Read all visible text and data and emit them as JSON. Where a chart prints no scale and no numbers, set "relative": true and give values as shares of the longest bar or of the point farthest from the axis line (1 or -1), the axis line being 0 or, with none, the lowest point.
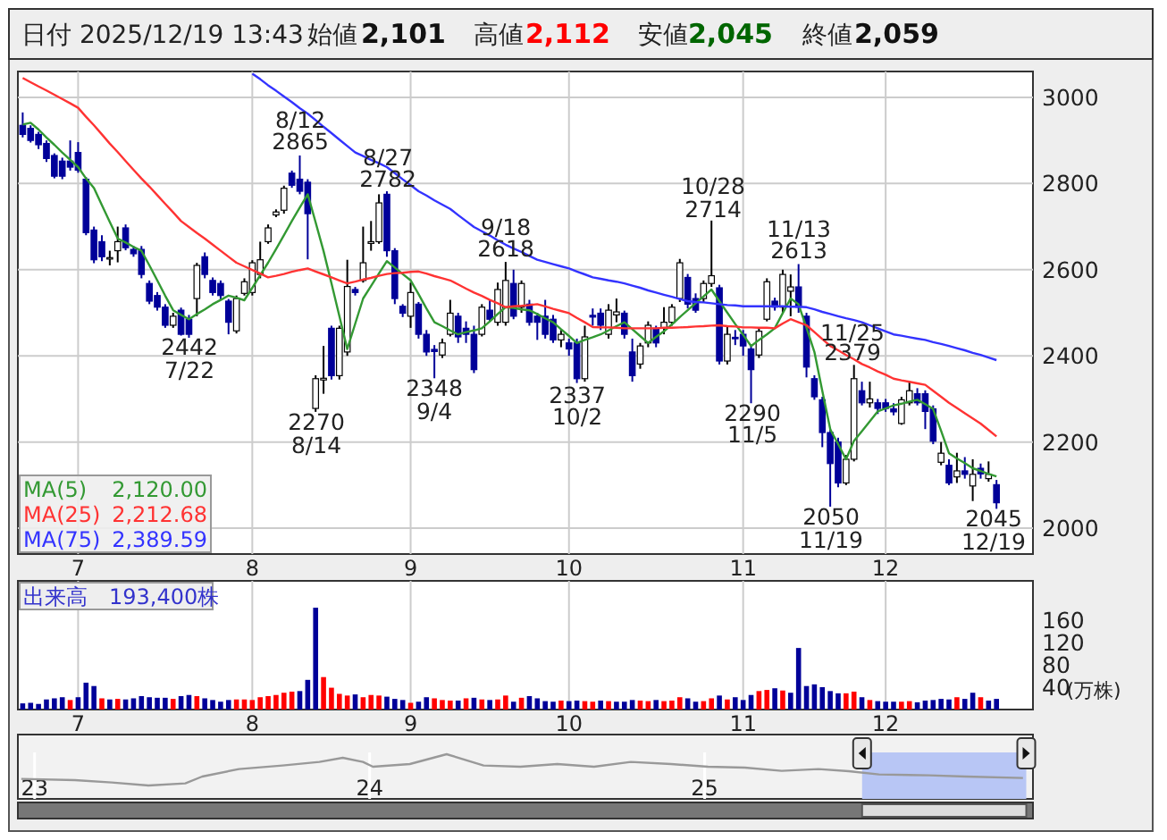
{
  "chart_data": [
    {
      "type": "candlestick",
      "categories": [
        null,
        null,
        null,
        null,
        null,
        null,
        null,
        "7",
        null,
        null,
        null,
        null,
        null,
        null,
        null,
        null,
        null,
        null,
        null,
        null,
        null,
        null,
        null,
        null,
        null,
        null,
        null,
        null,
        null,
        "8",
        null,
        null,
        null,
        null,
        null,
        null,
        null,
        null,
        null,
        null,
        null,
        null,
        null,
        null,
        null,
        null,
        null,
        null,
        null,
        "9",
        null,
        null,
        null,
        null,
        null,
        null,
        null,
        null,
        null,
        null,
        null,
        null,
        null,
        null,
        null,
        null,
        null,
        null,
        null,
        "10",
        null,
        null,
        null,
        null,
        null,
        null,
        null,
        null,
        null,
        null,
        null,
        null,
        null,
        null,
        null,
        null,
        null,
        null,
        null,
        null,
        null,
        "11",
        null,
        null,
        null,
        null,
        null,
        null,
        null,
        null,
        null,
        null,
        null,
        null,
        null,
        null,
        null,
        null,
        null,
        "12",
        null,
        null,
        null,
        null,
        null,
        null,
        null,
        null,
        null,
        null,
        null,
        null,
        null,
        null
      ],
      "ohlc": [
        [
          2935,
          2965,
          2907,
          2914
        ],
        [
          2928,
          2935,
          2895,
          2900
        ],
        [
          2914,
          2920,
          2880,
          2890
        ],
        [
          2893,
          2900,
          2850,
          2858
        ],
        [
          2865,
          2870,
          2812,
          2817
        ],
        [
          2852,
          2860,
          2810,
          2817
        ],
        [
          2852,
          2900,
          2830,
          2838
        ],
        [
          2872,
          2896,
          2825,
          2831
        ],
        [
          2810,
          2815,
          2680,
          2686
        ],
        [
          2692,
          2700,
          2615,
          2623
        ],
        [
          2665,
          2680,
          2620,
          2630
        ],
        [
          2626,
          2644,
          2610,
          2628
        ],
        [
          2644,
          2700,
          2617,
          2665
        ],
        [
          2697,
          2705,
          2645,
          2651
        ],
        [
          2647,
          2655,
          2630,
          2637
        ],
        [
          2647,
          2655,
          2580,
          2589
        ],
        [
          2568,
          2575,
          2520,
          2527
        ],
        [
          2540,
          2548,
          2505,
          2513
        ],
        [
          2513,
          2520,
          2465,
          2471
        ],
        [
          2471,
          2500,
          2465,
          2492
        ],
        [
          2506,
          2512,
          2447,
          2450
        ],
        [
          2485,
          2495,
          2442,
          2450
        ],
        [
          2533,
          2616,
          2492,
          2610
        ],
        [
          2630,
          2640,
          2580,
          2589
        ],
        [
          2575,
          2582,
          2540,
          2547
        ],
        [
          2568,
          2575,
          2530,
          2540
        ],
        [
          2527,
          2532,
          2450,
          2478
        ],
        [
          2458,
          2540,
          2452,
          2533
        ],
        [
          2545,
          2580,
          2540,
          2572
        ],
        [
          2547,
          2622,
          2540,
          2616
        ],
        [
          2589,
          2665,
          2580,
          2623
        ],
        [
          2665,
          2705,
          2660,
          2697
        ],
        [
          2727,
          2740,
          2722,
          2734
        ],
        [
          2738,
          2795,
          2730,
          2789
        ],
        [
          2824,
          2830,
          2790,
          2796
        ],
        [
          2810,
          2865,
          2775,
          2782
        ],
        [
          2803,
          2810,
          2624,
          2730
        ],
        [
          2278,
          2355,
          2270,
          2347
        ],
        [
          2344,
          2423,
          2312,
          2348
        ],
        [
          2464,
          2470,
          2345,
          2354
        ],
        [
          2354,
          2470,
          2345,
          2464
        ],
        [
          2409,
          2623,
          2400,
          2561
        ],
        [
          2554,
          2560,
          2540,
          2547
        ],
        [
          2575,
          2700,
          2570,
          2616
        ],
        [
          2661,
          2713,
          2644,
          2665
        ],
        [
          2665,
          2775,
          2660,
          2755
        ],
        [
          2775,
          2782,
          2630,
          2644
        ],
        [
          2644,
          2650,
          2520,
          2533
        ],
        [
          2515,
          2520,
          2490,
          2499
        ],
        [
          2492,
          2570,
          2465,
          2547
        ],
        [
          2520,
          2525,
          2440,
          2450
        ],
        [
          2450,
          2460,
          2400,
          2409
        ],
        [
          2415,
          2425,
          2348,
          2410
        ],
        [
          2402,
          2440,
          2395,
          2430
        ],
        [
          2450,
          2530,
          2445,
          2499
        ],
        [
          2492,
          2500,
          2430,
          2444
        ],
        [
          2464,
          2480,
          2430,
          2450
        ],
        [
          2450,
          2470,
          2360,
          2368
        ],
        [
          2450,
          2520,
          2445,
          2513
        ],
        [
          2506,
          2530,
          2480,
          2485
        ],
        [
          2478,
          2570,
          2470,
          2554
        ],
        [
          2478,
          2618,
          2470,
          2575
        ],
        [
          2568,
          2600,
          2485,
          2492
        ],
        [
          2513,
          2575,
          2500,
          2568
        ],
        [
          2520,
          2530,
          2470,
          2478
        ],
        [
          2492,
          2500,
          2437,
          2478
        ],
        [
          2492,
          2530,
          2440,
          2450
        ],
        [
          2485,
          2495,
          2430,
          2437
        ],
        [
          2437,
          2460,
          2420,
          2450
        ],
        [
          2430,
          2440,
          2400,
          2416
        ],
        [
          2430,
          2440,
          2337,
          2347
        ],
        [
          2347,
          2470,
          2340,
          2444
        ],
        [
          2494,
          2510,
          2470,
          2490
        ],
        [
          2499,
          2510,
          2460,
          2471
        ],
        [
          2450,
          2520,
          2440,
          2506
        ],
        [
          2495,
          2533,
          2478,
          2502
        ],
        [
          2499,
          2505,
          2440,
          2450
        ],
        [
          2409,
          2440,
          2340,
          2354
        ],
        [
          2381,
          2430,
          2370,
          2423
        ],
        [
          2430,
          2480,
          2420,
          2471
        ],
        [
          2464,
          2470,
          2420,
          2430
        ],
        [
          2464,
          2513,
          2450,
          2478
        ],
        [
          2478,
          2520,
          2470,
          2513
        ],
        [
          2533,
          2625,
          2525,
          2616
        ],
        [
          2582,
          2590,
          2510,
          2520
        ],
        [
          2533,
          2545,
          2500,
          2506
        ],
        [
          2533,
          2575,
          2525,
          2568
        ],
        [
          2568,
          2714,
          2560,
          2586
        ],
        [
          2558,
          2565,
          2380,
          2388
        ],
        [
          2388,
          2470,
          2380,
          2450
        ],
        [
          2443,
          2460,
          2425,
          2440
        ],
        [
          2450,
          2460,
          2400,
          2423
        ],
        [
          2416,
          2425,
          2290,
          2368
        ],
        [
          2402,
          2465,
          2395,
          2457
        ],
        [
          2485,
          2580,
          2480,
          2572
        ],
        [
          2527,
          2535,
          2505,
          2513
        ],
        [
          2513,
          2600,
          2500,
          2589
        ],
        [
          2550,
          2589,
          2492,
          2560
        ],
        [
          2560,
          2613,
          2500,
          2513
        ],
        [
          2492,
          2500,
          2350,
          2374
        ],
        [
          2347,
          2355,
          2298,
          2305
        ],
        [
          2298,
          2305,
          2188,
          2222
        ],
        [
          2222,
          2230,
          2050,
          2150
        ],
        [
          2200,
          2210,
          2095,
          2105
        ],
        [
          2105,
          2170,
          2100,
          2160
        ],
        [
          2160,
          2379,
          2155,
          2347
        ],
        [
          2319,
          2340,
          2285,
          2291
        ],
        [
          2291,
          2340,
          2280,
          2300
        ],
        [
          2291,
          2300,
          2265,
          2278
        ],
        [
          2291,
          2300,
          2270,
          2278
        ],
        [
          2277,
          2290,
          2262,
          2270
        ],
        [
          2243,
          2305,
          2240,
          2298
        ],
        [
          2291,
          2340,
          2285,
          2319
        ],
        [
          2312,
          2325,
          2285,
          2291
        ],
        [
          2312,
          2320,
          2230,
          2271
        ],
        [
          2277,
          2285,
          2195,
          2202
        ],
        [
          2153,
          2200,
          2146,
          2174
        ],
        [
          2146,
          2160,
          2100,
          2105
        ],
        [
          2119,
          2175,
          2105,
          2133
        ],
        [
          2133,
          2165,
          2115,
          2125
        ],
        [
          2098,
          2160,
          2063,
          2125
        ],
        [
          2139,
          2150,
          2115,
          2126
        ],
        [
          2115,
          2155,
          2108,
          2125
        ],
        [
          2101,
          2112,
          2045,
          2059
        ]
      ],
      "colors": [
        "#000099",
        "#000099",
        "#000099",
        "#000099",
        "#000099",
        "#000099",
        "#000099",
        "#000099",
        "#000099",
        "#000099",
        "#000099",
        "#ffffff",
        "#ffffff",
        "#000099",
        "#000099",
        "#000099",
        "#000099",
        "#000099",
        "#000099",
        "#ffffff",
        "#000099",
        "#000099",
        "#ffffff",
        "#000099",
        "#000099",
        "#000099",
        "#000099",
        "#ffffff",
        "#ffffff",
        "#ffffff",
        "#ffffff",
        "#ffffff",
        "#ffffff",
        "#ffffff",
        "#000099",
        "#000099",
        "#000099",
        "#ffffff",
        "#ffffff",
        "#000099",
        "#ffffff",
        "#ffffff",
        "#000099",
        "#ffffff",
        "#ffffff",
        "#ffffff",
        "#000099",
        "#000099",
        "#000099",
        "#ffffff",
        "#000099",
        "#000099",
        "#000099",
        "#ffffff",
        "#ffffff",
        "#000099",
        "#000099",
        "#000099",
        "#ffffff",
        "#000099",
        "#ffffff",
        "#ffffff",
        "#000099",
        "#ffffff",
        "#000099",
        "#000099",
        "#000099",
        "#000099",
        "#ffffff",
        "#000099",
        "#000099",
        "#ffffff",
        "#000099",
        "#000099",
        "#ffffff",
        "#ffffff",
        "#000099",
        "#000099",
        "#ffffff",
        "#ffffff",
        "#000099",
        "#ffffff",
        "#ffffff",
        "#ffffff",
        "#000099",
        "#000099",
        "#ffffff",
        "#ffffff",
        "#000099",
        "#ffffff",
        "#000099",
        "#000099",
        "#000099",
        "#ffffff",
        "#ffffff",
        "#000099",
        "#ffffff",
        "#ffffff",
        "#000099",
        "#000099",
        "#000099",
        "#000099",
        "#000099",
        "#000099",
        "#ffffff",
        "#ffffff",
        "#000099",
        "#ffffff",
        "#000099",
        "#000099",
        "#000099",
        "#ffffff",
        "#ffffff",
        "#000099",
        "#000099",
        "#000099",
        "#ffffff",
        "#000099",
        "#ffffff",
        "#000099",
        "#ffffff",
        "#000099",
        "#ffffff",
        "#000099"
      ],
      "series": [
        {
          "name": "MA(5)",
          "type": "line",
          "color": "#339933",
          "values": [
            2937,
            2941,
            2925,
            2907,
            2890,
            2872,
            2855,
            2838,
            2812,
            2789,
            2750,
            2711,
            2672,
            2663,
            2653,
            2644,
            2610,
            2575,
            2540,
            2506,
            2495,
            2485,
            2497,
            2508,
            2520,
            2530,
            2540,
            2535,
            2529,
            2558,
            2587,
            2616,
            2648,
            2680,
            2713,
            2744,
            2775,
            2710,
            2644,
            2568,
            2492,
            2416,
            2475,
            2533,
            2562,
            2591,
            2620,
            2605,
            2590,
            2575,
            2543,
            2510,
            2478,
            2469,
            2459,
            2450,
            2455,
            2459,
            2464,
            2480,
            2497,
            2513,
            2511,
            2508,
            2506,
            2497,
            2487,
            2478,
            2462,
            2446,
            2430,
            2437,
            2443,
            2450,
            2459,
            2469,
            2478,
            2462,
            2446,
            2430,
            2444,
            2457,
            2473,
            2490,
            2506,
            2522,
            2538,
            2554,
            2527,
            2500,
            2474,
            2449,
            2423,
            2437,
            2450,
            2464,
            2499,
            2533,
            2520,
            2465,
            2409,
            2319,
            2229,
            2195,
            2160,
            2202,
            2225,
            2248,
            2271,
            2278,
            2285,
            2289,
            2294,
            2298,
            2288,
            2277,
            2226,
            2174,
            2162,
            2151,
            2139,
            2133,
            2126,
            2120
          ]
        },
        {
          "name": "MA(25)",
          "type": "line",
          "color": "#ff3333",
          "values": [
            3045,
            3035,
            3025,
            3016,
            3006,
            2996,
            2986,
            2976,
            2955,
            2935,
            2914,
            2893,
            2873,
            2852,
            2832,
            2812,
            2793,
            2773,
            2753,
            2733,
            2713,
            2699,
            2685,
            2672,
            2658,
            2644,
            2630,
            2616,
            2608,
            2599,
            2591,
            2582,
            2586,
            2590,
            2595,
            2599,
            2603,
            2596,
            2589,
            2582,
            2575,
            2568,
            2572,
            2577,
            2581,
            2586,
            2590,
            2592,
            2593,
            2595,
            2596,
            2591,
            2585,
            2580,
            2575,
            2566,
            2556,
            2547,
            2539,
            2530,
            2522,
            2513,
            2515,
            2516,
            2518,
            2520,
            2515,
            2509,
            2504,
            2499,
            2488,
            2478,
            2467,
            2466,
            2466,
            2465,
            2464,
            2464,
            2464,
            2464,
            2464,
            2465,
            2465,
            2466,
            2467,
            2468,
            2469,
            2470,
            2471,
            2469,
            2468,
            2466,
            2466,
            2465,
            2465,
            2464,
            2475,
            2485,
            2478,
            2471,
            2455,
            2439,
            2423,
            2413,
            2402,
            2392,
            2381,
            2373,
            2364,
            2356,
            2347,
            2343,
            2340,
            2336,
            2333,
            2319,
            2305,
            2291,
            2279,
            2267,
            2255,
            2243,
            2228,
            2213
          ]
        },
        {
          "name": "MA(75)",
          "type": "line",
          "color": "#3333ff",
          "values": [
            null,
            null,
            null,
            null,
            null,
            null,
            null,
            null,
            null,
            null,
            null,
            null,
            null,
            null,
            null,
            null,
            null,
            null,
            null,
            null,
            null,
            null,
            null,
            null,
            null,
            null,
            null,
            null,
            null,
            3055,
            3042,
            3028,
            3015,
            3002,
            2989,
            2975,
            2962,
            2947,
            2932,
            2917,
            2902,
            2887,
            2872,
            2864,
            2855,
            2847,
            2838,
            2824,
            2810,
            2796,
            2782,
            2772,
            2761,
            2751,
            2741,
            2727,
            2713,
            2699,
            2689,
            2679,
            2668,
            2658,
            2649,
            2641,
            2632,
            2623,
            2618,
            2613,
            2608,
            2603,
            2596,
            2589,
            2582,
            2579,
            2575,
            2572,
            2568,
            2563,
            2558,
            2552,
            2547,
            2542,
            2537,
            2532,
            2527,
            2525,
            2524,
            2522,
            2520,
            2518,
            2517,
            2515,
            2515,
            2515,
            2515,
            2515,
            2515,
            2514,
            2514,
            2513,
            2508,
            2502,
            2497,
            2492,
            2487,
            2483,
            2478,
            2471,
            2464,
            2457,
            2450,
            2447,
            2443,
            2440,
            2437,
            2432,
            2428,
            2423,
            2418,
            2413,
            2407,
            2402,
            2396,
            2390
          ]
        }
      ],
      "ylim": [
        1940,
        3060
      ],
      "yticks": [
        2000,
        2200,
        2400,
        2600,
        2800,
        3000
      ],
      "grid": true,
      "legend": "bottom left",
      "annotations": [
        "日付 2025/12/19 13:43",
        "始値",
        "2,101",
        "高値",
        "2,112",
        "安値",
        "2,045",
        "終値",
        "2,059",
        "2,120.00",
        "2,212.68",
        "2,389.59",
        "2442\n7/22",
        "8/12\n2865",
        "2270\n8/14",
        "8/27\n2782",
        "2348\n9/4",
        "9/18\n2618",
        "2337\n10/2",
        "10/28\n2714",
        "2290\n11/5",
        "11/13\n2613",
        "11/25\n2379",
        "2050\n11/19",
        "2045\n12/19"
      ]
    },
    {
      "type": "bar",
      "categories": [
        null,
        null,
        null,
        null,
        null,
        null,
        null,
        "7",
        null,
        null,
        null,
        null,
        null,
        null,
        null,
        null,
        null,
        null,
        null,
        null,
        null,
        null,
        null,
        null,
        null,
        null,
        null,
        null,
        null,
        "8",
        null,
        null,
        null,
        null,
        null,
        null,
        null,
        null,
        null,
        null,
        null,
        null,
        null,
        null,
        null,
        null,
        null,
        null,
        null,
        "9",
        null,
        null,
        null,
        null,
        null,
        null,
        null,
        null,
        null,
        null,
        null,
        null,
        null,
        null,
        null,
        null,
        null,
        null,
        null,
        "10",
        null,
        null,
        null,
        null,
        null,
        null,
        null,
        null,
        null,
        null,
        null,
        null,
        null,
        null,
        null,
        null,
        null,
        null,
        null,
        null,
        null,
        "11",
        null,
        null,
        null,
        null,
        null,
        null,
        null,
        null,
        null,
        null,
        null,
        null,
        null,
        null,
        null,
        null,
        null,
        "12",
        null,
        null,
        null,
        null,
        null,
        null,
        null,
        null,
        null,
        null,
        null,
        null,
        null,
        null
      ],
      "values": [
        11,
        12,
        10,
        18,
        20,
        22,
        17,
        22,
        48,
        42,
        20,
        18,
        19,
        18,
        20,
        24,
        22,
        21,
        21,
        19,
        24,
        26,
        24,
        20,
        17,
        14,
        17,
        18,
        18,
        17,
        22,
        24,
        26,
        30,
        32,
        33,
        53,
        182,
        58,
        39,
        28,
        25,
        27,
        22,
        26,
        25,
        23,
        19,
        17,
        12,
        14,
        22,
        20,
        17,
        16,
        16,
        20,
        21,
        18,
        17,
        18,
        25,
        14,
        21,
        24,
        20,
        15,
        14,
        16,
        15,
        16,
        15,
        14,
        16,
        15,
        14,
        14,
        17,
        16,
        15,
        17,
        15,
        16,
        22,
        20,
        14,
        15,
        20,
        25,
        18,
        22,
        17,
        26,
        33,
        35,
        38,
        34,
        30,
        110,
        42,
        45,
        40,
        33,
        29,
        29,
        32,
        22,
        17,
        15,
        14,
        14,
        14,
        15,
        13,
        16,
        17,
        19,
        18,
        22,
        19,
        30,
        22,
        16,
        19
      ],
      "colors": [
        "#000099",
        "#000099",
        "#000099",
        "#000099",
        "#000099",
        "#000099",
        "#ff0000",
        "#000099",
        "#000099",
        "#000099",
        "#ff0000",
        "#000099",
        "#ff0000",
        "#000099",
        "#000099",
        "#000099",
        "#000099",
        "#000099",
        "#000099",
        "#ff0000",
        "#000099",
        "#000099",
        "#ff0000",
        "#000099",
        "#000099",
        "#000099",
        "#000099",
        "#ff0000",
        "#ff0000",
        "#ff0000",
        "#ff0000",
        "#ff0000",
        "#ff0000",
        "#ff0000",
        "#ff0000",
        "#000099",
        "#000099",
        "#000099",
        "#ff0000",
        "#ff0000",
        "#ff0000",
        "#ff0000",
        "#000099",
        "#ff0000",
        "#ff0000",
        "#ff0000",
        "#000099",
        "#000099",
        "#000099",
        "#ff0000",
        "#000099",
        "#000099",
        "#ff0000",
        "#ff0000",
        "#ff0000",
        "#000099",
        "#ff0000",
        "#000099",
        "#ff0000",
        "#000099",
        "#ff0000",
        "#ff0000",
        "#000099",
        "#ff0000",
        "#000099",
        "#000099",
        "#000099",
        "#000099",
        "#ff0000",
        "#000099",
        "#000099",
        "#ff0000",
        "#ff0000",
        "#000099",
        "#ff0000",
        "#000099",
        "#000099",
        "#000099",
        "#ff0000",
        "#ff0000",
        "#000099",
        "#ff0000",
        "#ff0000",
        "#ff0000",
        "#000099",
        "#000099",
        "#ff0000",
        "#ff0000",
        "#000099",
        "#ff0000",
        "#000099",
        "#000099",
        "#000099",
        "#ff0000",
        "#ff0000",
        "#000099",
        "#ff0000",
        "#000099",
        "#000099",
        "#000099",
        "#000099",
        "#000099",
        "#000099",
        "#000099",
        "#ff0000",
        "#ff0000",
        "#000099",
        "#ff0000",
        "#000099",
        "#000099",
        "#000099",
        "#ff0000",
        "#ff0000",
        "#000099",
        "#000099",
        "#000099",
        "#000099",
        "#000099",
        "#ff0000",
        "#000099",
        "#000099",
        "#ff0000",
        "#000099",
        "#000099"
      ],
      "ylim": [
        0,
        230
      ],
      "yticks": [
        40,
        80,
        120,
        160
      ],
      "ylabel": "(万株)",
      "grid": "x",
      "annotations": [
        "出来高　193,400株"
      ]
    },
    {
      "type": "line",
      "relative": true,
      "color": "#999999",
      "x": [
        2022.96,
        2023.12,
        2023.23,
        2023.34,
        2023.45,
        2023.5,
        2023.61,
        2023.74,
        2023.85,
        2023.92,
        2023.98,
        2024.01,
        2024.12,
        2024.23,
        2024.34,
        2024.45,
        2024.56,
        2024.67,
        2024.78,
        2024.9,
        2025.01,
        2025.12,
        2025.23,
        2025.34,
        2025.43,
        2025.52,
        2025.67,
        2025.78,
        2025.95
      ],
      "values": [
        0.45,
        0.42,
        0.37,
        0.3,
        0.35,
        0.5,
        0.67,
        0.75,
        0.83,
        0.92,
        0.83,
        0.72,
        0.78,
        1,
        0.75,
        0.72,
        0.78,
        0.72,
        0.83,
        0.78,
        0.72,
        0.7,
        0.63,
        0.67,
        0.62,
        0.55,
        0.53,
        0.5,
        0.47
      ],
      "xlim": [
        2022.95,
        2025.98
      ],
      "xticks": [
        {
          "value": 2023,
          "label": "23"
        },
        {
          "value": 2024,
          "label": "24"
        },
        {
          "value": 2025,
          "label": "25"
        }
      ],
      "grid": "x",
      "bands": [
        {
          "axis": "x",
          "from": 2025.47,
          "to": 2025.96,
          "color": "#b8c6f5"
        }
      ]
    }
  ]
}
